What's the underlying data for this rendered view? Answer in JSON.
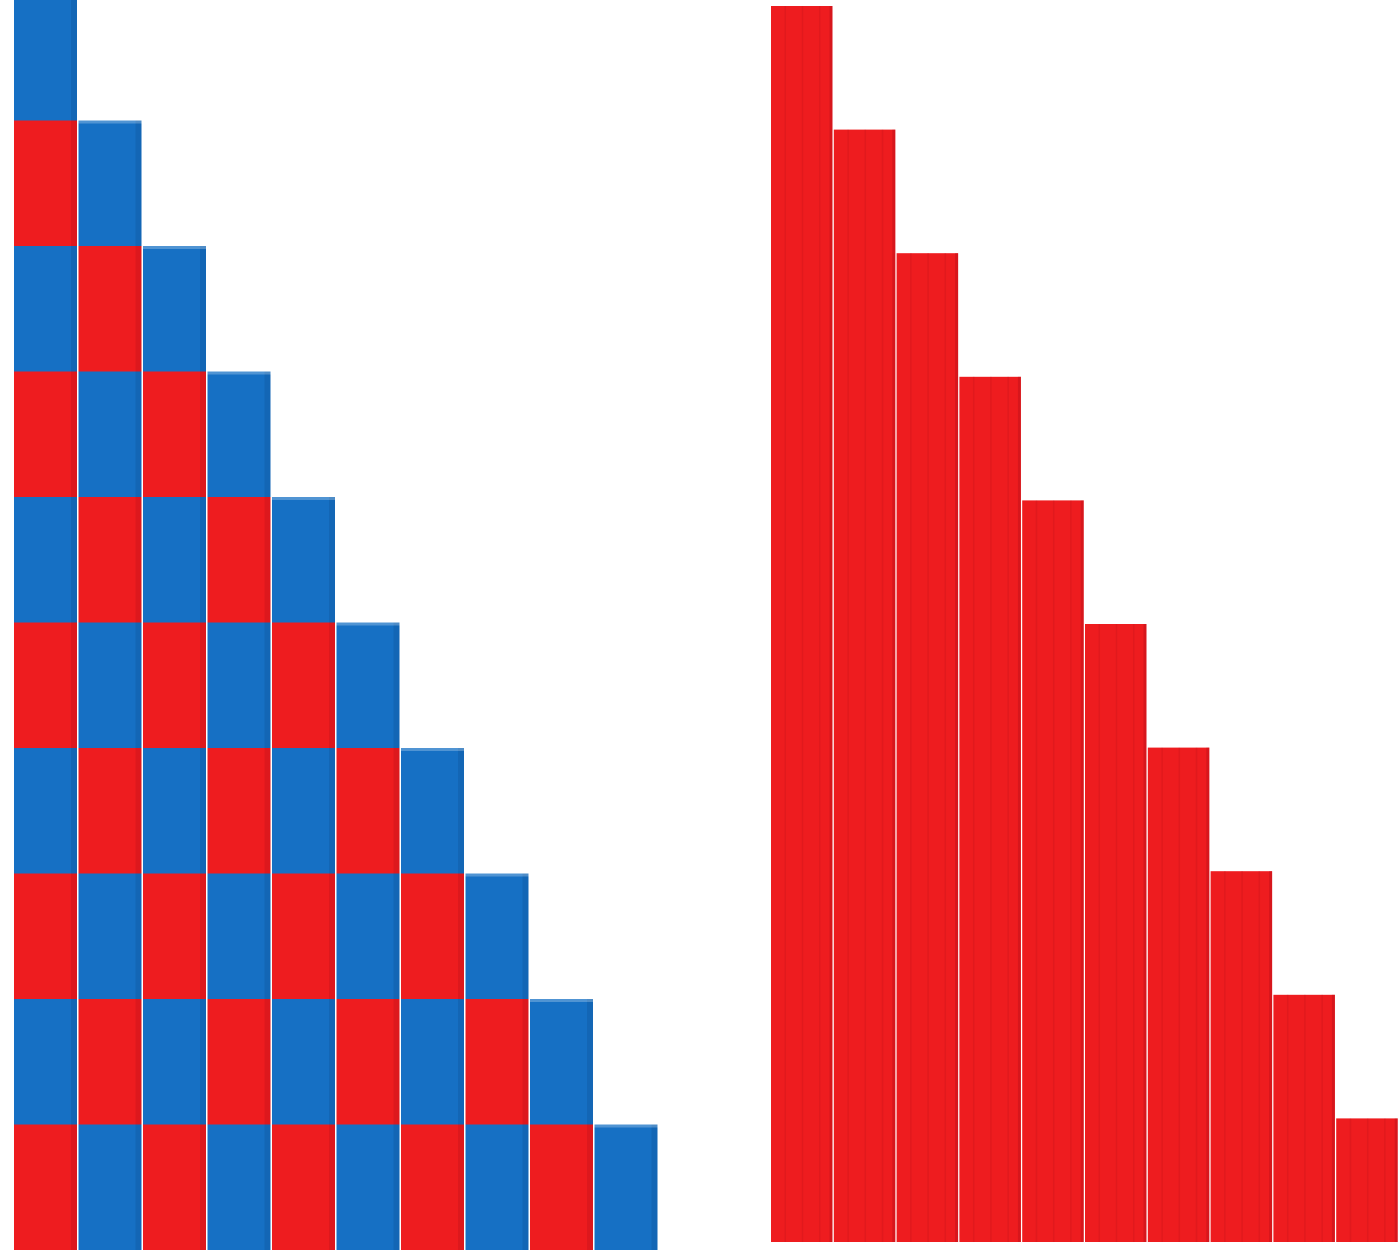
{
  "colors": {
    "background": "#ffffff",
    "red": "#ee1c1f",
    "red_shade": "#c8131a",
    "blue": "#1670c4",
    "blue_shade": "#0f5aa3"
  },
  "number_rods": {
    "pattern": [
      "blue",
      "red"
    ],
    "rods": [
      {
        "segments": 10
      },
      {
        "segments": 9
      },
      {
        "segments": 8
      },
      {
        "segments": 7
      },
      {
        "segments": 6
      },
      {
        "segments": 5
      },
      {
        "segments": 4
      },
      {
        "segments": 3
      },
      {
        "segments": 2
      },
      {
        "segments": 1
      }
    ]
  },
  "red_rods": {
    "rods": [
      {
        "length": 10
      },
      {
        "length": 9
      },
      {
        "length": 8
      },
      {
        "length": 7
      },
      {
        "length": 6
      },
      {
        "length": 5
      },
      {
        "length": 4
      },
      {
        "length": 3
      },
      {
        "length": 2
      },
      {
        "length": 1
      }
    ]
  }
}
